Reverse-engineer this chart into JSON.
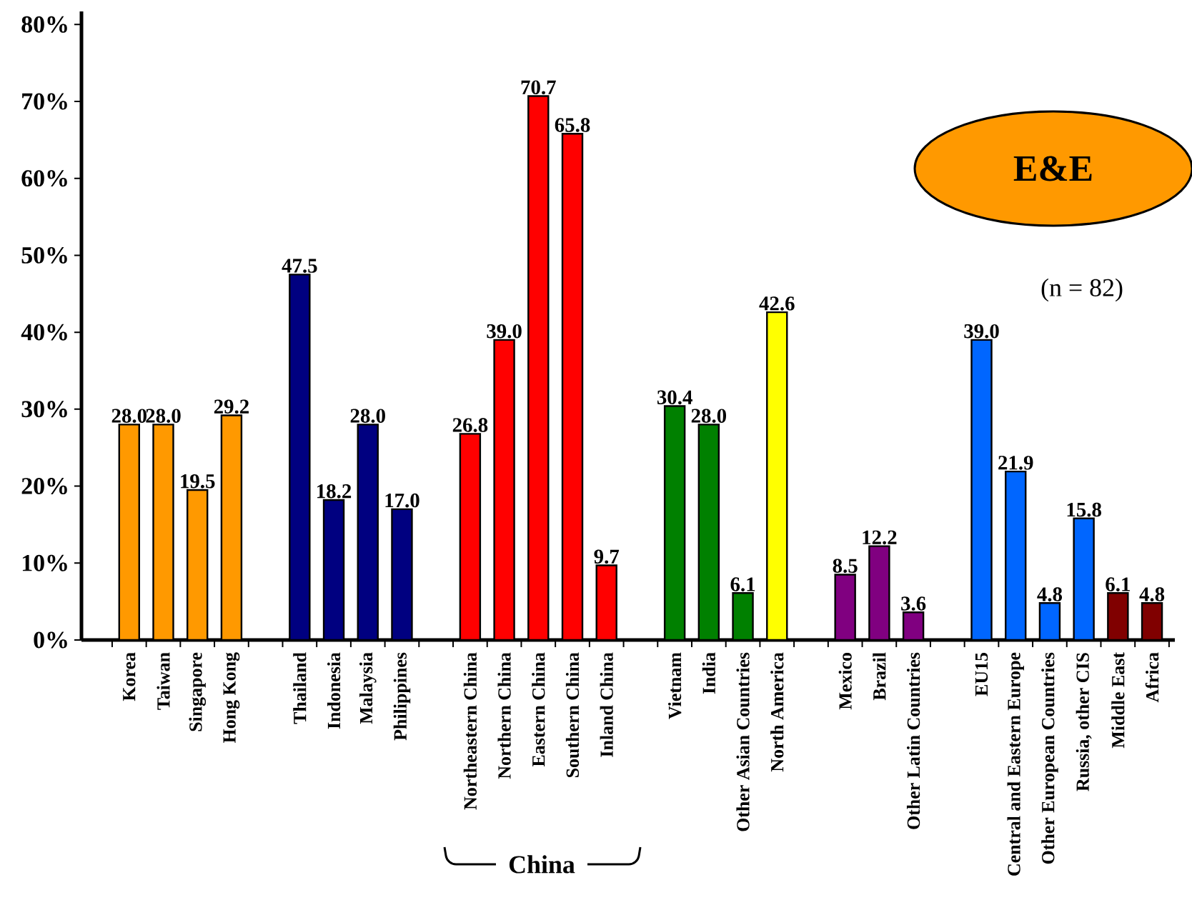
{
  "chart_data": {
    "type": "bar",
    "categories": [
      "Korea",
      "Taiwan",
      "Singapore",
      "Hong Kong",
      null,
      "Thailand",
      "Indonesia",
      "Malaysia",
      "Philippines",
      null,
      "Northeastern China",
      "Northern China",
      "Eastern China",
      "Southern China",
      "Inland China",
      null,
      "Vietnam",
      "India",
      "Other Asian Countries",
      "North America",
      null,
      "Mexico",
      "Brazil",
      "Other Latin Countries",
      null,
      "EU15",
      "Central and Eastern Europe",
      "Other European Countries",
      "Russia, other CIS",
      "Middle East",
      "Africa"
    ],
    "values": [
      28.0,
      28.0,
      19.5,
      29.2,
      null,
      47.5,
      18.2,
      28.0,
      17.0,
      null,
      26.8,
      39.0,
      70.7,
      65.8,
      9.7,
      null,
      30.4,
      28.0,
      6.1,
      42.6,
      null,
      8.5,
      12.2,
      3.6,
      null,
      39.0,
      21.9,
      4.8,
      15.8,
      6.1,
      4.8
    ],
    "colors": [
      "#ff9900",
      "#ff9900",
      "#ff9900",
      "#ff9900",
      null,
      "#000080",
      "#000080",
      "#000080",
      "#000080",
      null,
      "#ff0000",
      "#ff0000",
      "#ff0000",
      "#ff0000",
      "#ff0000",
      null,
      "#008000",
      "#008000",
      "#008000",
      "#ffff00",
      null,
      "#800080",
      "#800080",
      "#800080",
      null,
      "#0066ff",
      "#0066ff",
      "#0066ff",
      "#0066ff",
      "#800000",
      "#800000"
    ],
    "value_labels": [
      "28.0",
      "28.0",
      "19.5",
      "29.2",
      null,
      "47.5",
      "18.2",
      "28.0",
      "17.0",
      null,
      "26.8",
      "39.0",
      "70.7",
      "65.8",
      "9.7",
      null,
      "30.4",
      "28.0",
      "6.1",
      "42.6",
      null,
      "8.5",
      "12.2",
      "3.6",
      null,
      "39.0",
      "21.9",
      "4.8",
      "15.8",
      "6.1",
      "4.8"
    ],
    "ylim": [
      0,
      81.7
    ],
    "yticks": [
      {
        "value": 0,
        "label": "0%"
      },
      {
        "value": 10,
        "label": "10%"
      },
      {
        "value": 20,
        "label": "20%"
      },
      {
        "value": 30,
        "label": "30%"
      },
      {
        "value": 40,
        "label": "40%"
      },
      {
        "value": 50,
        "label": "50%"
      },
      {
        "value": 60,
        "label": "60%"
      },
      {
        "value": 70,
        "label": "70%"
      },
      {
        "value": 80,
        "label": "80%"
      }
    ],
    "annotations": [
      "China",
      "E&E",
      "(n = 82)"
    ]
  }
}
